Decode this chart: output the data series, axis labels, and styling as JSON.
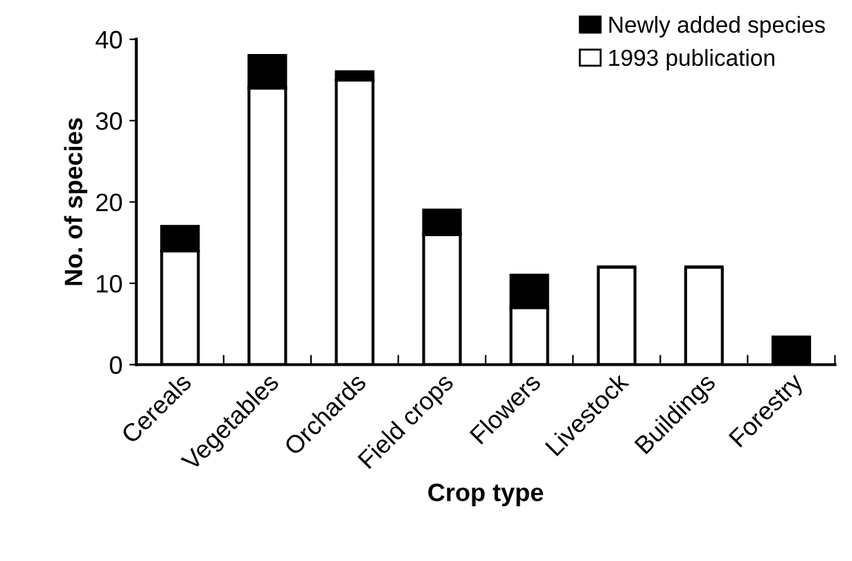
{
  "chart_data": {
    "type": "bar",
    "stacked": true,
    "xlabel": "Crop type",
    "ylabel": "No. of species",
    "categories": [
      "Cereals",
      "Vegetables",
      "Orchards",
      "Field crops",
      "Flowers",
      "Livestock",
      "Buildings",
      "Forestry"
    ],
    "series": [
      {
        "name": "1993 publication",
        "color": "#ffffff",
        "values": [
          14,
          34,
          35,
          16,
          7,
          12,
          12,
          0
        ]
      },
      {
        "name": "Newly added species",
        "color": "#000000",
        "values": [
          3,
          4,
          1,
          3,
          4,
          0,
          0,
          3.4
        ]
      }
    ],
    "ylim": [
      0,
      40
    ],
    "yticks": [
      0,
      10,
      20,
      30,
      40
    ],
    "grid": false,
    "legend": "top right"
  }
}
